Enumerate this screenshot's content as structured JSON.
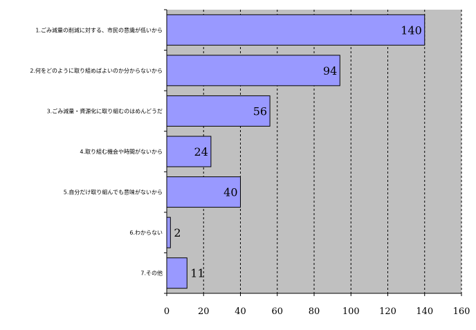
{
  "chart_data": {
    "type": "bar",
    "orientation": "horizontal",
    "categories": [
      "1.ごみ減量の削減に対する、市民の意識が低いから",
      "2.何をどのように取り組めばよいのか分からないから",
      "3.ごみ減量・資源化に取り組むのはめんどうだ",
      "4.取り組む機会や時間がないから",
      "5.自分だけ取り組んでも意味がないから",
      "6.わからない",
      "7.その他"
    ],
    "values": [
      140,
      94,
      56,
      24,
      40,
      2,
      11
    ],
    "xlim": [
      0,
      160
    ],
    "x_ticks": [
      0,
      20,
      40,
      60,
      80,
      100,
      120,
      140,
      160
    ],
    "grid": true,
    "grid_style": "dashed vertical",
    "colors": {
      "bar_fill": "#9999ff",
      "bar_stroke": "#000000",
      "plot_background": "#c0c0c0",
      "grid": "#000000"
    }
  }
}
